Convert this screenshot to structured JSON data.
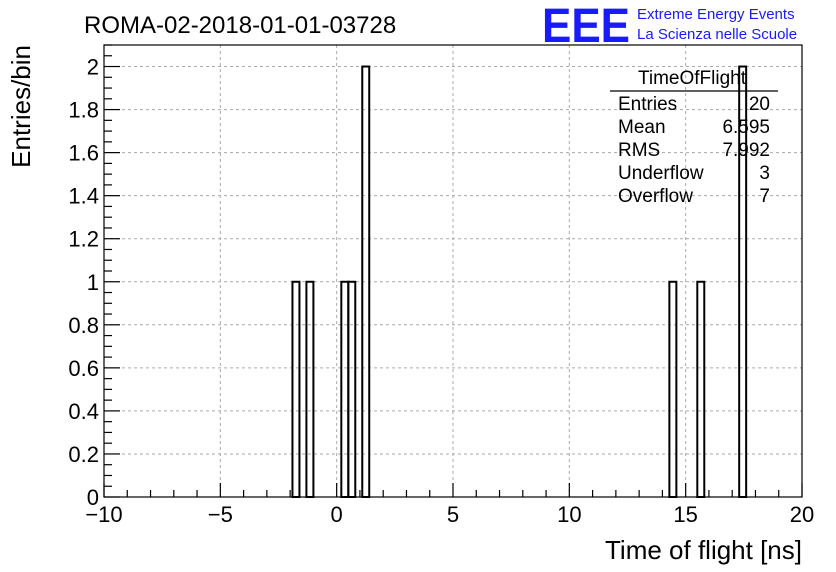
{
  "chart_data": {
    "type": "bar",
    "title": "ROMA-02-2018-01-01-03728",
    "xlabel": "Time of flight [ns]",
    "ylabel": "Entries/bin",
    "xlim": [
      -10,
      20
    ],
    "ylim": [
      0,
      2.1
    ],
    "grid": true,
    "x_ticks": [
      -10,
      -5,
      0,
      5,
      10,
      15,
      20
    ],
    "x_tick_labels": [
      "−10",
      "−5",
      "0",
      "5",
      "10",
      "15",
      "20"
    ],
    "y_ticks": [
      0,
      0.2,
      0.4,
      0.6,
      0.8,
      1,
      1.2,
      1.4,
      1.6,
      1.8,
      2
    ],
    "y_tick_labels": [
      "0",
      "0.2",
      "0.4",
      "0.6",
      "0.8",
      "1",
      "1.2",
      "1.4",
      "1.6",
      "1.8",
      "2"
    ],
    "bin_width": 0.3,
    "bars": [
      {
        "x_low": -1.9,
        "value": 1
      },
      {
        "x_low": -1.3,
        "value": 1
      },
      {
        "x_low": 0.2,
        "value": 1
      },
      {
        "x_low": 0.5,
        "value": 1
      },
      {
        "x_low": 1.1,
        "value": 2
      },
      {
        "x_low": 14.3,
        "value": 1
      },
      {
        "x_low": 15.5,
        "value": 1
      },
      {
        "x_low": 17.3,
        "value": 2
      }
    ],
    "stats_box": {
      "title": "TimeOfFlight",
      "rows": [
        {
          "label": "Entries",
          "value": "20"
        },
        {
          "label": "Mean",
          "value": "6.595"
        },
        {
          "label": "RMS",
          "value": "7.992"
        },
        {
          "label": "Underflow",
          "value": "3"
        },
        {
          "label": "Overflow",
          "value": "7"
        }
      ]
    }
  },
  "logo": {
    "mark": "EEE",
    "line1": "Extreme Energy Events",
    "line2": "La Scienza nelle Scuole",
    "color": "#1a1aff"
  }
}
